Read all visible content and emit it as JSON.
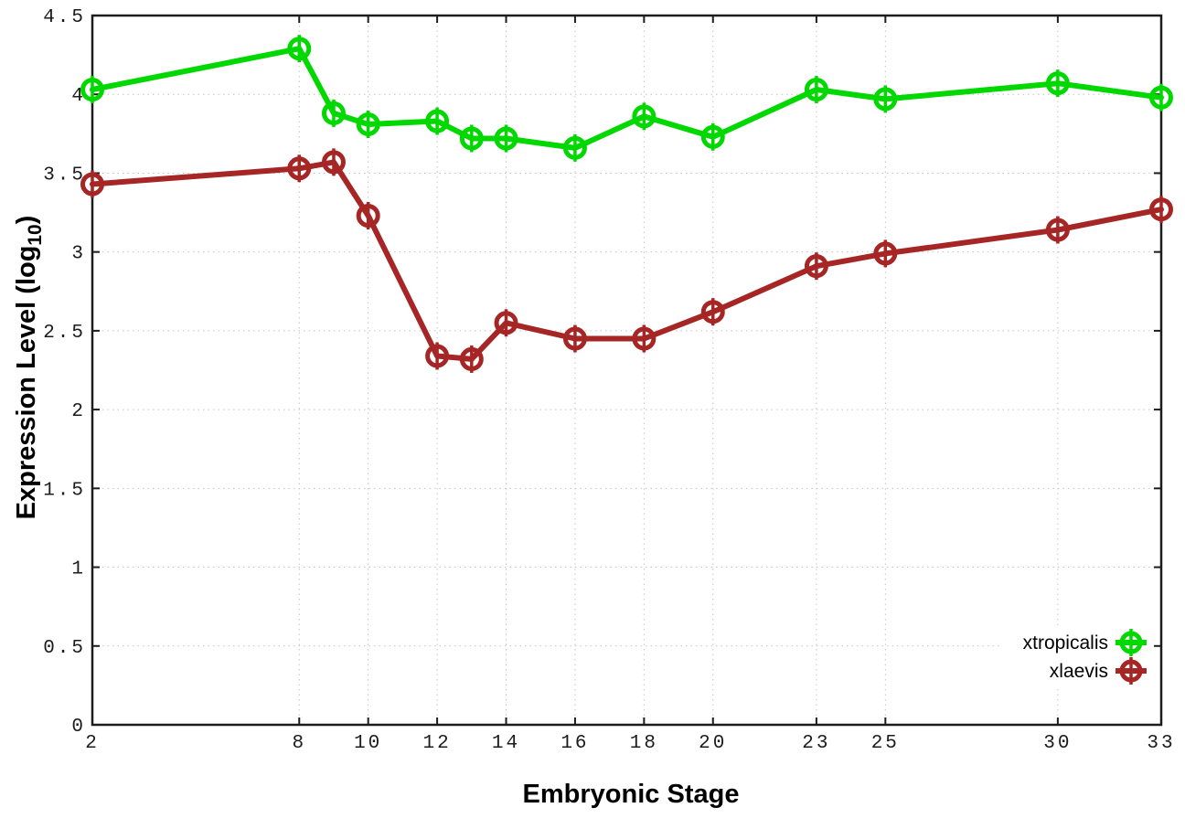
{
  "figure": {
    "background": "#ffffff"
  },
  "chart_data": {
    "type": "line",
    "title": "",
    "xlabel": "Embryonic Stage",
    "ylabel": "Expression Level (log₁₀)",
    "ylabel_parts": {
      "main": "Expression Level (log",
      "sub": "10",
      "end": ")"
    },
    "xlim": [
      2,
      33
    ],
    "ylim": [
      0,
      4.5
    ],
    "x_ticks": [
      2,
      8,
      10,
      12,
      14,
      16,
      18,
      20,
      23,
      25,
      30,
      33
    ],
    "y_ticks": [
      0,
      0.5,
      1,
      1.5,
      2,
      2.5,
      3,
      3.5,
      4,
      4.5
    ],
    "y_tick_labels": [
      "0",
      "0.5",
      "1",
      "1.5",
      "2",
      "2.5",
      "3",
      "3.5",
      "4",
      "4.5"
    ],
    "grid": true,
    "legend_position": "inside bottom-right",
    "marker": "open-circle-errorbar",
    "axis_color": "#1c1c1c",
    "grid_color": "#c4c4c4",
    "x": [
      2,
      8,
      9,
      10,
      12,
      13,
      14,
      16,
      18,
      20,
      23,
      25,
      30,
      33
    ],
    "series": [
      {
        "name": "xtropicalis",
        "color": "#00d800",
        "values": [
          4.03,
          4.29,
          3.88,
          3.81,
          3.83,
          3.72,
          3.72,
          3.66,
          3.86,
          3.73,
          4.03,
          3.97,
          4.07,
          3.98
        ]
      },
      {
        "name": "xlaevis",
        "color": "#a62626",
        "values": [
          3.43,
          3.53,
          3.57,
          3.23,
          2.34,
          2.32,
          2.55,
          2.45,
          2.45,
          2.62,
          2.91,
          2.99,
          3.14,
          3.27
        ]
      }
    ]
  }
}
